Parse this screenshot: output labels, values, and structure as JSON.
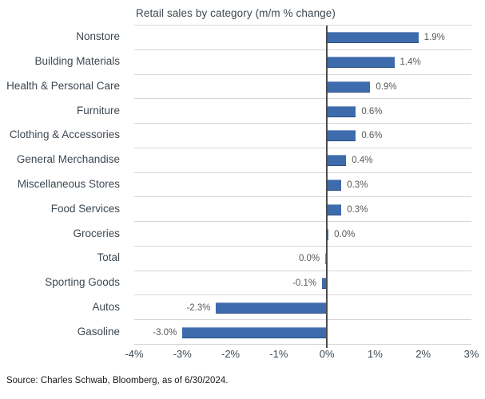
{
  "chart": {
    "title": "Retail sales by category (m/m % change)",
    "source": "Source: Charles Schwab, Bloomberg, as of 6/30/2024."
  },
  "colors": {
    "bar_blue": "#3E6BAC",
    "bar_gold": "#AB8C35",
    "gridline": "#D6D6D6",
    "zero_line": "#4D4D4D",
    "axis_text": "#3D4852",
    "value_text": "#595959"
  },
  "chart_data": {
    "type": "bar",
    "orientation": "horizontal",
    "title": "Retail sales by category (m/m % change)",
    "xlabel": "",
    "ylabel": "",
    "xlim": [
      -4,
      3
    ],
    "x_tick_labels": [
      "-4%",
      "-3%",
      "-2%",
      "-1%",
      "0%",
      "1%",
      "2%",
      "3%"
    ],
    "grid": true,
    "legend": false,
    "bars": [
      {
        "category": "Nonstore",
        "value": 1.9,
        "label": "1.9%",
        "color": "blue",
        "label_side": "right"
      },
      {
        "category": "Building Materials",
        "value": 1.4,
        "label": "1.4%",
        "color": "blue",
        "label_side": "right"
      },
      {
        "category": "Health & Personal Care",
        "value": 0.9,
        "label": "0.9%",
        "color": "blue",
        "label_side": "right"
      },
      {
        "category": "Furniture",
        "value": 0.6,
        "label": "0.6%",
        "color": "blue",
        "label_side": "right"
      },
      {
        "category": "Clothing & Accessories",
        "value": 0.6,
        "label": "0.6%",
        "color": "blue",
        "label_side": "right"
      },
      {
        "category": "General Merchandise",
        "value": 0.4,
        "label": "0.4%",
        "color": "blue",
        "label_side": "right"
      },
      {
        "category": "Miscellaneous Stores",
        "value": 0.3,
        "label": "0.3%",
        "color": "blue",
        "label_side": "right"
      },
      {
        "category": "Food Services",
        "value": 0.3,
        "label": "0.3%",
        "color": "blue",
        "label_side": "right"
      },
      {
        "category": "Groceries",
        "value": 0.0,
        "label": "0.0%",
        "color": "blue",
        "label_side": "right"
      },
      {
        "category": "Total",
        "value": 0.0,
        "label": "0.0%",
        "color": "gold",
        "label_side": "left"
      },
      {
        "category": "Sporting Goods",
        "value": -0.1,
        "label": "-0.1%",
        "color": "blue",
        "label_side": "left"
      },
      {
        "category": "Autos",
        "value": -2.3,
        "label": "-2.3%",
        "color": "blue",
        "label_side": "left"
      },
      {
        "category": "Gasoline",
        "value": -3.0,
        "label": "-3.0%",
        "color": "blue",
        "label_side": "left"
      }
    ],
    "source": "Source: Charles Schwab, Bloomberg, as of 6/30/2024."
  }
}
